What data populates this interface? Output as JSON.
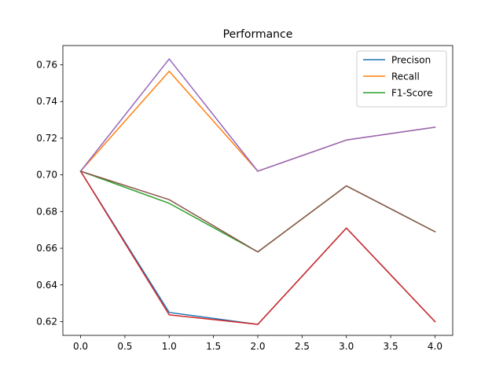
{
  "chart_data": {
    "type": "line",
    "title": "Performance",
    "xlabel": "",
    "ylabel": "",
    "xlim": [
      -0.2,
      4.2
    ],
    "ylim": [
      0.6125,
      0.7705
    ],
    "xticks": [
      0.0,
      0.5,
      1.0,
      1.5,
      2.0,
      2.5,
      3.0,
      3.5,
      4.0
    ],
    "xtick_labels": [
      "0.0",
      "0.5",
      "1.0",
      "1.5",
      "2.0",
      "2.5",
      "3.0",
      "3.5",
      "4.0"
    ],
    "yticks": [
      0.62,
      0.64,
      0.66,
      0.68,
      0.7,
      0.72,
      0.74,
      0.76
    ],
    "ytick_labels": [
      "0.62",
      "0.64",
      "0.66",
      "0.68",
      "0.70",
      "0.72",
      "0.74",
      "0.76"
    ],
    "grid": false,
    "legend_position": "top-right",
    "x": [
      0,
      1,
      2,
      3,
      4
    ],
    "series": [
      {
        "name": "Precison",
        "color": "#1f77b4",
        "values": [
          0.702,
          0.625,
          0.6185,
          0.671,
          0.62
        ],
        "in_legend": true
      },
      {
        "name": "Recall",
        "color": "#ff7f0e",
        "values": [
          0.702,
          0.7565,
          0.702,
          0.719,
          0.726
        ],
        "in_legend": true
      },
      {
        "name": "F1-Score",
        "color": "#2ca02c",
        "values": [
          0.702,
          0.6845,
          0.658,
          0.694,
          0.669
        ],
        "in_legend": true
      },
      {
        "name": "",
        "color": "#d62728",
        "values": [
          0.702,
          0.6237,
          0.6185,
          0.671,
          0.62
        ],
        "in_legend": false
      },
      {
        "name": "",
        "color": "#9467bd",
        "values": [
          0.702,
          0.7632,
          0.702,
          0.719,
          0.726
        ],
        "in_legend": false
      },
      {
        "name": "",
        "color": "#8c564b",
        "values": [
          0.702,
          0.6865,
          0.658,
          0.694,
          0.669
        ],
        "in_legend": false
      }
    ]
  }
}
